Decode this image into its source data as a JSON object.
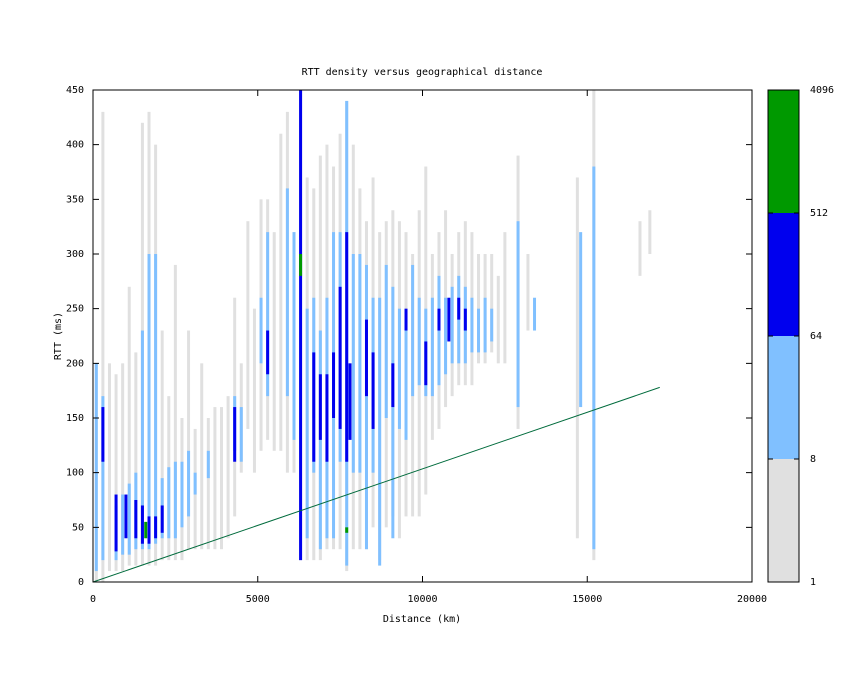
{
  "chart_data": {
    "type": "density",
    "title": "RTT density versus geographical distance",
    "x_label": "Distance (km)",
    "y_label": "RTT (ms)",
    "xlim": [
      0,
      20000
    ],
    "ylim": [
      0,
      450
    ],
    "xticks": [
      0,
      5000,
      10000,
      15000,
      20000
    ],
    "yticks": [
      0,
      50,
      100,
      150,
      200,
      250,
      300,
      350,
      400,
      450
    ],
    "colorbar": {
      "ticks": [
        1,
        8,
        64,
        512,
        4096
      ],
      "colors": [
        "#e0e0e0",
        "#80c0ff",
        "#0000ee",
        "#009900"
      ],
      "log": true
    },
    "cells": [
      [
        100,
        0,
        200,
        3
      ],
      [
        300,
        0,
        430,
        3
      ],
      [
        500,
        10,
        200,
        3
      ],
      [
        700,
        10,
        190,
        3
      ],
      [
        900,
        10,
        200,
        3
      ],
      [
        1100,
        15,
        270,
        3
      ],
      [
        1300,
        15,
        210,
        3
      ],
      [
        1500,
        15,
        420,
        3
      ],
      [
        1700,
        15,
        430,
        3
      ],
      [
        1900,
        15,
        400,
        3
      ],
      [
        2100,
        20,
        230,
        3
      ],
      [
        2300,
        20,
        170,
        3
      ],
      [
        2500,
        20,
        290,
        3
      ],
      [
        2700,
        20,
        150,
        3
      ],
      [
        2900,
        30,
        230,
        3
      ],
      [
        3100,
        30,
        140,
        3
      ],
      [
        3300,
        30,
        200,
        3
      ],
      [
        3500,
        30,
        150,
        3
      ],
      [
        3700,
        30,
        160,
        3
      ],
      [
        3900,
        30,
        160,
        3
      ],
      [
        4100,
        40,
        170,
        3
      ],
      [
        4300,
        60,
        260,
        3
      ],
      [
        4500,
        100,
        200,
        3
      ],
      [
        4700,
        140,
        330,
        3
      ],
      [
        4900,
        100,
        250,
        3
      ],
      [
        5100,
        120,
        350,
        3
      ],
      [
        5300,
        130,
        350,
        3
      ],
      [
        5500,
        120,
        320,
        3
      ],
      [
        5700,
        120,
        410,
        3
      ],
      [
        5900,
        100,
        430,
        3
      ],
      [
        6100,
        100,
        320,
        3
      ],
      [
        6300,
        20,
        450,
        3
      ],
      [
        6500,
        20,
        370,
        3
      ],
      [
        6700,
        20,
        360,
        3
      ],
      [
        6900,
        20,
        390,
        3
      ],
      [
        7100,
        30,
        400,
        3
      ],
      [
        7300,
        30,
        380,
        3
      ],
      [
        7500,
        30,
        410,
        3
      ],
      [
        7700,
        10,
        440,
        3
      ],
      [
        7900,
        30,
        400,
        3
      ],
      [
        8100,
        30,
        360,
        3
      ],
      [
        8300,
        30,
        330,
        3
      ],
      [
        8500,
        50,
        370,
        3
      ],
      [
        8700,
        20,
        320,
        3
      ],
      [
        8900,
        50,
        330,
        3
      ],
      [
        9100,
        60,
        340,
        3
      ],
      [
        9300,
        40,
        330,
        3
      ],
      [
        9500,
        60,
        320,
        3
      ],
      [
        9700,
        60,
        300,
        3
      ],
      [
        9900,
        60,
        340,
        3
      ],
      [
        10100,
        80,
        380,
        3
      ],
      [
        10300,
        130,
        300,
        3
      ],
      [
        10500,
        140,
        320,
        3
      ],
      [
        10700,
        160,
        340,
        3
      ],
      [
        10900,
        170,
        300,
        3
      ],
      [
        11100,
        180,
        320,
        3
      ],
      [
        11300,
        180,
        330,
        3
      ],
      [
        11500,
        180,
        320,
        3
      ],
      [
        11700,
        200,
        300,
        3
      ],
      [
        11900,
        200,
        300,
        3
      ],
      [
        12100,
        210,
        300,
        3
      ],
      [
        12300,
        200,
        280,
        3
      ],
      [
        12500,
        200,
        320,
        3
      ],
      [
        12900,
        140,
        390,
        3
      ],
      [
        13200,
        230,
        300,
        3
      ],
      [
        14700,
        40,
        370,
        3
      ],
      [
        15200,
        20,
        450,
        3
      ],
      [
        16600,
        280,
        330,
        3
      ],
      [
        16900,
        300,
        340,
        3
      ],
      [
        100,
        10,
        200,
        20
      ],
      [
        300,
        20,
        170,
        20
      ],
      [
        700,
        20,
        70,
        20
      ],
      [
        900,
        25,
        80,
        20
      ],
      [
        1100,
        25,
        90,
        20
      ],
      [
        1300,
        30,
        100,
        20
      ],
      [
        1500,
        30,
        230,
        20
      ],
      [
        1700,
        30,
        300,
        20
      ],
      [
        1900,
        35,
        300,
        20
      ],
      [
        2100,
        40,
        95,
        20
      ],
      [
        2300,
        40,
        105,
        20
      ],
      [
        2500,
        40,
        110,
        20
      ],
      [
        2700,
        50,
        110,
        20
      ],
      [
        2900,
        60,
        120,
        20
      ],
      [
        3100,
        80,
        100,
        20
      ],
      [
        3500,
        95,
        120,
        20
      ],
      [
        4300,
        120,
        170,
        20
      ],
      [
        4500,
        110,
        160,
        20
      ],
      [
        5100,
        200,
        260,
        20
      ],
      [
        5300,
        170,
        320,
        20
      ],
      [
        5900,
        170,
        360,
        20
      ],
      [
        6100,
        130,
        320,
        20
      ],
      [
        6500,
        40,
        250,
        20
      ],
      [
        6700,
        100,
        260,
        20
      ],
      [
        6900,
        30,
        230,
        20
      ],
      [
        7100,
        40,
        260,
        20
      ],
      [
        7300,
        40,
        320,
        20
      ],
      [
        7500,
        110,
        320,
        20
      ],
      [
        7700,
        15,
        440,
        20
      ],
      [
        7900,
        100,
        300,
        20
      ],
      [
        8100,
        100,
        300,
        20
      ],
      [
        8300,
        30,
        290,
        20
      ],
      [
        8500,
        100,
        260,
        20
      ],
      [
        8700,
        15,
        260,
        20
      ],
      [
        8900,
        150,
        290,
        20
      ],
      [
        9100,
        40,
        270,
        20
      ],
      [
        9300,
        140,
        250,
        20
      ],
      [
        9500,
        130,
        240,
        20
      ],
      [
        9700,
        170,
        290,
        20
      ],
      [
        9900,
        180,
        260,
        20
      ],
      [
        10100,
        170,
        250,
        20
      ],
      [
        10300,
        170,
        260,
        20
      ],
      [
        10500,
        180,
        280,
        20
      ],
      [
        10700,
        190,
        260,
        20
      ],
      [
        10900,
        200,
        270,
        20
      ],
      [
        11100,
        200,
        280,
        20
      ],
      [
        11300,
        200,
        270,
        20
      ],
      [
        11500,
        210,
        260,
        20
      ],
      [
        11700,
        210,
        250,
        20
      ],
      [
        11900,
        210,
        260,
        20
      ],
      [
        12100,
        220,
        250,
        20
      ],
      [
        12900,
        160,
        330,
        20
      ],
      [
        13400,
        230,
        260,
        20
      ],
      [
        14800,
        160,
        320,
        20
      ],
      [
        15200,
        30,
        380,
        20
      ],
      [
        300,
        110,
        160,
        150
      ],
      [
        700,
        28,
        80,
        150
      ],
      [
        1000,
        40,
        80,
        150
      ],
      [
        1300,
        40,
        75,
        150
      ],
      [
        1500,
        35,
        70,
        150
      ],
      [
        1700,
        35,
        60,
        150
      ],
      [
        1900,
        40,
        60,
        150
      ],
      [
        2100,
        45,
        70,
        150
      ],
      [
        4300,
        110,
        160,
        150
      ],
      [
        5300,
        190,
        230,
        150
      ],
      [
        6300,
        20,
        450,
        150
      ],
      [
        6700,
        110,
        210,
        150
      ],
      [
        6900,
        130,
        190,
        150
      ],
      [
        7100,
        110,
        190,
        150
      ],
      [
        7300,
        150,
        210,
        150
      ],
      [
        7500,
        140,
        270,
        150
      ],
      [
        7700,
        110,
        320,
        150
      ],
      [
        7800,
        130,
        200,
        150
      ],
      [
        8300,
        170,
        240,
        150
      ],
      [
        8500,
        140,
        210,
        150
      ],
      [
        9100,
        160,
        200,
        150
      ],
      [
        9500,
        230,
        250,
        150
      ],
      [
        10100,
        180,
        220,
        150
      ],
      [
        10500,
        230,
        250,
        150
      ],
      [
        10800,
        220,
        260,
        150
      ],
      [
        11100,
        240,
        260,
        150
      ],
      [
        11300,
        230,
        250,
        150
      ],
      [
        1600,
        40,
        55,
        1000
      ],
      [
        6300,
        280,
        300,
        1000
      ],
      [
        7700,
        45,
        50,
        1000
      ]
    ],
    "line": {
      "x": [
        0,
        17200
      ],
      "y": [
        0,
        178
      ],
      "color": "#006b3c"
    }
  }
}
